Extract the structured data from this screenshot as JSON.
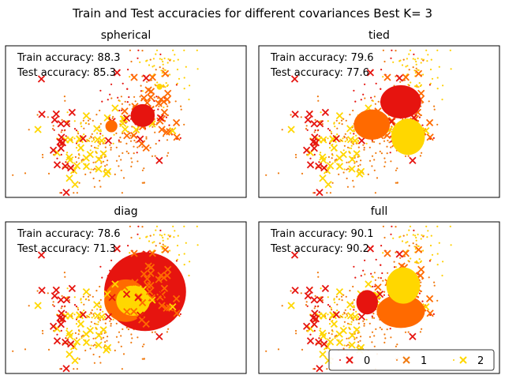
{
  "figure": {
    "title": "Train and Test accuracies for different covariances Best K= 3"
  },
  "colors": {
    "0": "#e6140f",
    "1": "#ff6a00",
    "2": "#ffd700",
    "points_0": "#e6140f",
    "points_1": "#f07a10",
    "points_2": "#ffd000"
  },
  "legend": {
    "placement": "lower-right of full panel",
    "items": [
      {
        "label": "0",
        "color": "#e6140f"
      },
      {
        "label": "1",
        "color": "#f07a10"
      },
      {
        "label": "2",
        "color": "#ffd700"
      }
    ]
  },
  "chart_data": [
    {
      "type": "scatter",
      "title": "spherical",
      "train_label": "Train accuracy: 88.3",
      "test_label": "Test accuracy: 85.3",
      "ellipses": [
        {
          "cls": 0,
          "cx": 0.57,
          "cy": 0.46,
          "rx": 0.05,
          "ry": 0.075
        },
        {
          "cls": 1,
          "cx": 0.44,
          "cy": 0.53,
          "rx": 0.025,
          "ry": 0.04
        },
        {
          "cls": 2,
          "cx": 0.64,
          "cy": 0.27,
          "rx": 0.012,
          "ry": 0.02
        }
      ]
    },
    {
      "type": "scatter",
      "title": "tied",
      "train_label": "Train accuracy: 79.6",
      "test_label": "Test accuracy: 77.6",
      "ellipses": [
        {
          "cls": 0,
          "cx": 0.59,
          "cy": 0.37,
          "rx": 0.085,
          "ry": 0.11
        },
        {
          "cls": 1,
          "cx": 0.47,
          "cy": 0.52,
          "rx": 0.075,
          "ry": 0.1
        },
        {
          "cls": 2,
          "cx": 0.62,
          "cy": 0.6,
          "rx": 0.07,
          "ry": 0.12
        }
      ]
    },
    {
      "type": "scatter",
      "title": "diag",
      "train_label": "Train accuracy: 78.6",
      "test_label": "Test accuracy: 71.3",
      "ellipses": [
        {
          "cls": 0,
          "cx": 0.58,
          "cy": 0.46,
          "rx": 0.17,
          "ry": 0.26
        },
        {
          "cls": 1,
          "cx": 0.5,
          "cy": 0.52,
          "rx": 0.09,
          "ry": 0.14
        },
        {
          "cls": 2,
          "cx": 0.53,
          "cy": 0.52,
          "rx": 0.07,
          "ry": 0.1
        }
      ]
    },
    {
      "type": "scatter",
      "title": "full",
      "train_label": "Train accuracy: 90.1",
      "test_label": "Test accuracy: 90.2",
      "ellipses": [
        {
          "cls": 0,
          "cx": 0.45,
          "cy": 0.53,
          "rx": 0.045,
          "ry": 0.08
        },
        {
          "cls": 1,
          "cx": 0.59,
          "cy": 0.59,
          "rx": 0.1,
          "ry": 0.11
        },
        {
          "cls": 2,
          "cx": 0.6,
          "cy": 0.42,
          "rx": 0.07,
          "ry": 0.12
        }
      ]
    }
  ]
}
